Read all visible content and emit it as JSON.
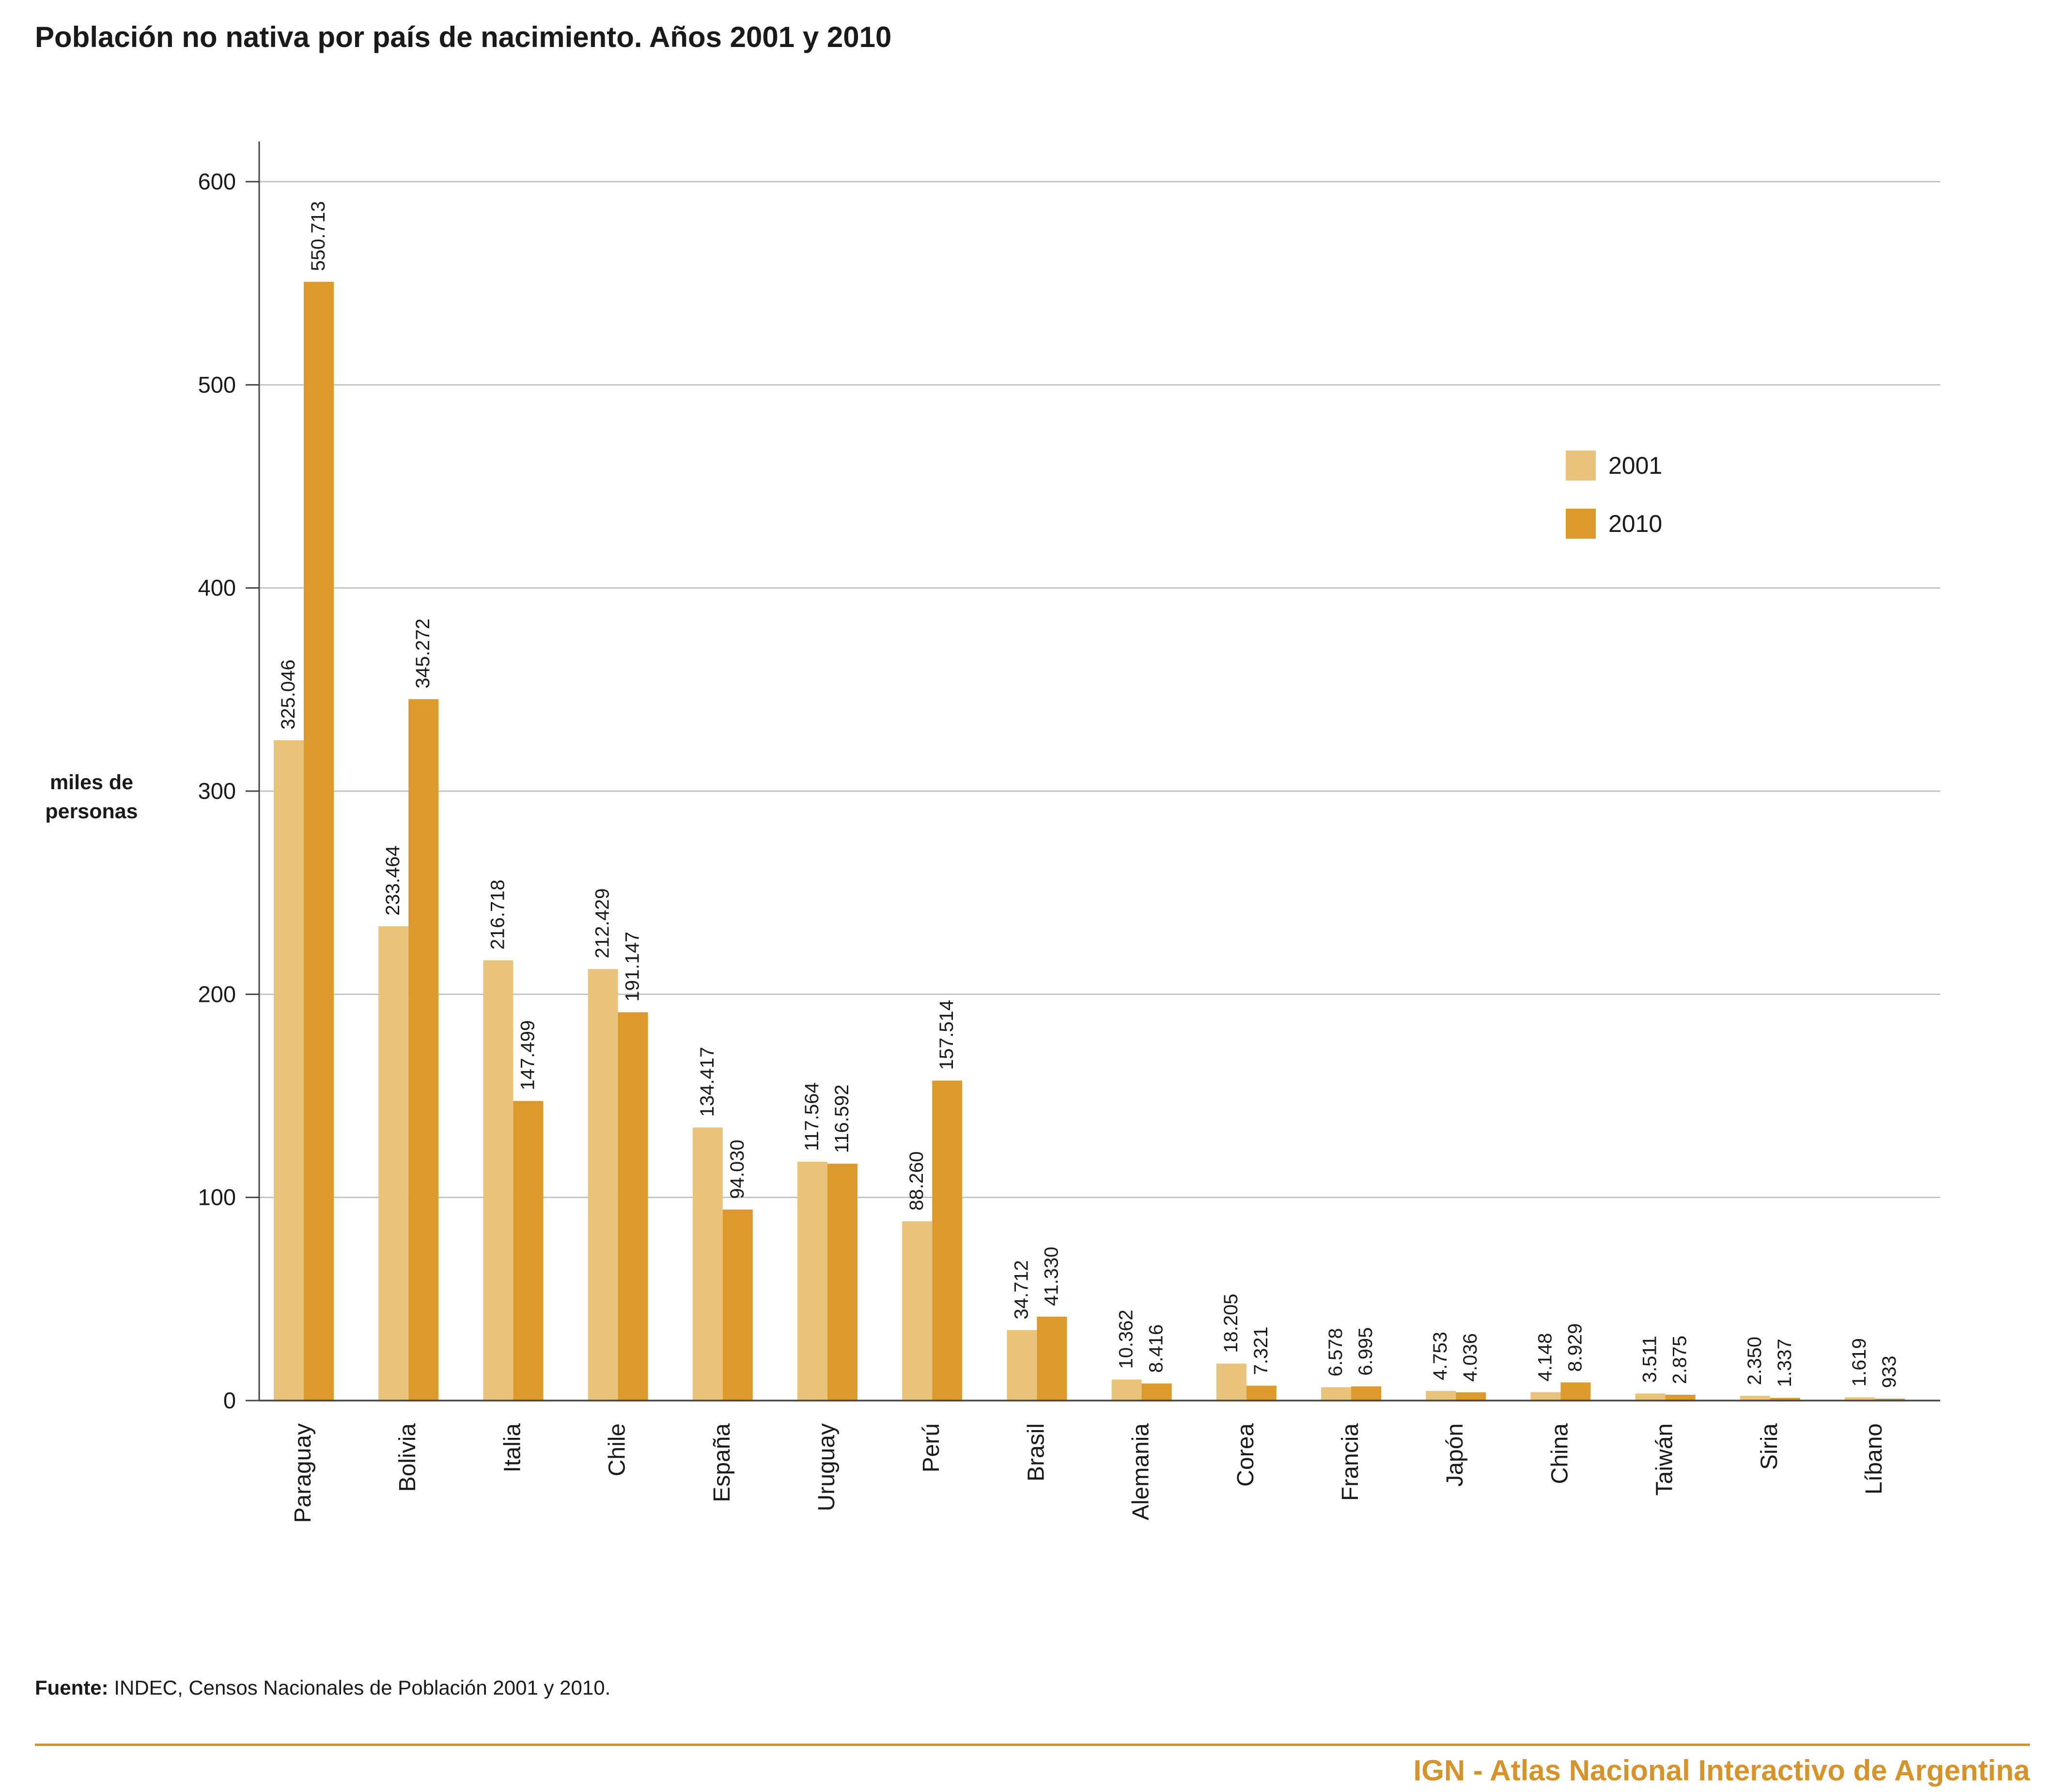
{
  "colors": {
    "series_2001": "#e9c27c",
    "series_2010": "#db9a2b",
    "gridline": "#b9b9b9",
    "axis": "#444444",
    "text": "#1a1a1a",
    "brand": "#d6932b"
  },
  "source": {
    "prefix": "Fuente:",
    "text": " INDEC, Censos Nacionales de Población 2001 y 2010."
  },
  "footer": {
    "text": "IGN - Atlas Nacional Interactivo de Argentina"
  },
  "chart_data": {
    "type": "bar",
    "title": "Población no nativa por país de nacimiento. Años 2001 y 2010",
    "ylabel_lines": [
      "miles de",
      "personas"
    ],
    "xlabel": "",
    "ylim": [
      0,
      600
    ],
    "yticks": [
      0,
      100,
      200,
      300,
      400,
      500,
      600
    ],
    "grid": true,
    "legend_position": "top-right",
    "categories": [
      "Paraguay",
      "Bolivia",
      "Italia",
      "Chile",
      "España",
      "Uruguay",
      "Perú",
      "Brasil",
      "Alemania",
      "Corea",
      "Francia",
      "Japón",
      "China",
      "Taiwán",
      "Siria",
      "Líbano"
    ],
    "series": [
      {
        "name": "2001",
        "values": [
          325.046,
          233.464,
          216.718,
          212.429,
          134.417,
          117.564,
          88.26,
          34.712,
          10.362,
          18.205,
          6.578,
          4.753,
          4.148,
          3.511,
          2.35,
          1.619
        ],
        "labels": [
          "325.046",
          "233.464",
          "216.718",
          "212.429",
          "134.417",
          "117.564",
          "88.260",
          "34.712",
          "10.362",
          "18.205",
          "6.578",
          "4.753",
          "4.148",
          "3.511",
          "2.350",
          "1.619"
        ]
      },
      {
        "name": "2010",
        "values": [
          550.713,
          345.272,
          147.499,
          191.147,
          94.03,
          116.592,
          157.514,
          41.33,
          8.416,
          7.321,
          6.995,
          4.036,
          8.929,
          2.875,
          1.337,
          0.933
        ],
        "labels": [
          "550.713",
          "345.272",
          "147.499",
          "191.147",
          "94.030",
          "116.592",
          "157.514",
          "41.330",
          "8.416",
          "7.321",
          "6.995",
          "4.036",
          "8.929",
          "2.875",
          "1.337",
          "933"
        ]
      }
    ]
  }
}
